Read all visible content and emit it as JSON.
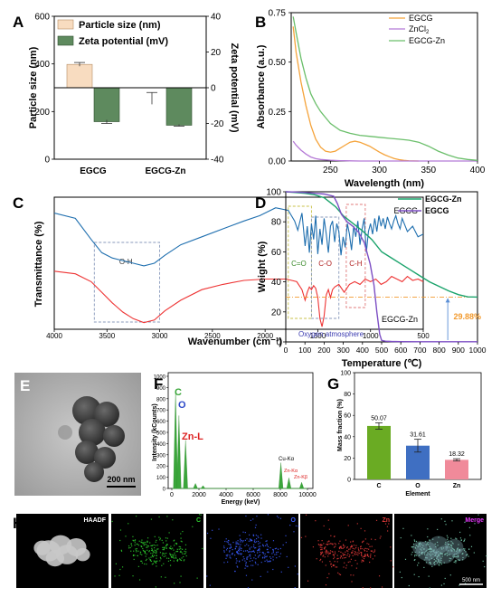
{
  "panels": {
    "a": "A",
    "b": "B",
    "c": "C",
    "d": "D",
    "e": "E",
    "f": "F",
    "g": "G",
    "h": "H"
  },
  "colors": {
    "ecg_orange": "#f5a33a",
    "zncl_purple": "#b57ad6",
    "ecgzn_green": "#6bbf6b",
    "ftir_blue": "#1f6faf",
    "ftir_red": "#ee3333",
    "tga_green": "#1aa36b",
    "tga_purple": "#7d4fc4",
    "bar_peach": "#f8dcc0",
    "bar_darkgreen": "#5e8a5e",
    "bar_c": "#6aab23",
    "bar_o": "#3f6fc2",
    "bar_zn": "#f08a9a",
    "edx_green": "#3aa63a",
    "edx_red": "#dd2222",
    "ref_orange": "#f29a2e"
  },
  "chart_data": [
    {
      "id": "A",
      "type": "bar",
      "categories": [
        "EGCG",
        "EGCG-Zn"
      ],
      "series": [
        {
          "name": "Particle size (nm)",
          "axis": "left",
          "values": [
            398,
            255
          ],
          "errors": [
            8,
            25
          ]
        },
        {
          "name": "Zeta potential (mV)",
          "axis": "right",
          "values": [
            -19,
            -21
          ],
          "errors": [
            1,
            0.5
          ]
        }
      ],
      "ylabel": "Particle size (nm)",
      "ylabel_right": "Zeta potential (mV)",
      "ylim": [
        0,
        600
      ],
      "ylim_right": [
        -40,
        40
      ],
      "yticks": [
        "0",
        "200",
        "400",
        "600"
      ],
      "yticks_right": [
        "-40",
        "-20",
        "0",
        "20",
        "40"
      ],
      "legend_position": "top-left"
    },
    {
      "id": "B",
      "type": "line",
      "xlabel": "Wavelength (nm)",
      "ylabel": "Absorbance (a.u.)",
      "xlim": [
        210,
        400
      ],
      "ylim": [
        0,
        0.75
      ],
      "xticks": [
        "250",
        "300",
        "350",
        "400"
      ],
      "yticks": [
        "0.00",
        "0.25",
        "0.50",
        "0.75"
      ],
      "legend": {
        "EGCG": "EGCG",
        "ZnCl": "ZnCl",
        "sub": "2",
        "EGCGZn": "EGCG-Zn"
      },
      "legend_position": "top-right",
      "series": [
        {
          "name": "EGCG",
          "x": [
            212,
            215,
            220,
            225,
            230,
            235,
            240,
            245,
            250,
            255,
            260,
            265,
            270,
            275,
            280,
            285,
            290,
            295,
            300,
            305,
            310,
            315,
            320,
            325,
            330,
            340
          ],
          "y": [
            0.68,
            0.55,
            0.4,
            0.28,
            0.18,
            0.11,
            0.07,
            0.05,
            0.045,
            0.05,
            0.065,
            0.08,
            0.095,
            0.1,
            0.095,
            0.085,
            0.075,
            0.06,
            0.045,
            0.032,
            0.022,
            0.013,
            0.007,
            0.003,
            0.001,
            0
          ]
        },
        {
          "name": "ZnCl2",
          "x": [
            212,
            215,
            220,
            225,
            230,
            235,
            240,
            250,
            260,
            270,
            280,
            300,
            320,
            400
          ],
          "y": [
            0.1,
            0.08,
            0.055,
            0.035,
            0.02,
            0.012,
            0.008,
            0.004,
            0.002,
            0.001,
            0,
            0,
            0,
            0
          ]
        },
        {
          "name": "EGCG-Zn",
          "x": [
            212,
            215,
            220,
            225,
            230,
            235,
            240,
            245,
            250,
            260,
            270,
            280,
            290,
            300,
            310,
            320,
            330,
            340,
            350,
            360,
            370,
            380,
            390,
            400
          ],
          "y": [
            0.73,
            0.65,
            0.52,
            0.42,
            0.34,
            0.29,
            0.25,
            0.22,
            0.19,
            0.155,
            0.14,
            0.13,
            0.125,
            0.12,
            0.115,
            0.11,
            0.105,
            0.095,
            0.075,
            0.05,
            0.03,
            0.015,
            0.008,
            0.003
          ]
        }
      ]
    },
    {
      "id": "C",
      "type": "line",
      "xlabel": "Wavenumber (cm⁻¹)",
      "ylabel": "Transmittance (%)",
      "xlim": [
        4000,
        500
      ],
      "xticks": [
        "4000",
        "3500",
        "3000",
        "2500",
        "2000",
        "1500",
        "1000",
        "500"
      ],
      "series_labels": {
        "top": "EGCG",
        "bottom": "EGCG-Zn"
      },
      "annotations": [
        "O-H",
        "C=O",
        "C-O",
        "C-H"
      ],
      "bands": [
        {
          "label": "O-H",
          "from": 3620,
          "to": 3000
        },
        {
          "label": "C=O",
          "from": 1780,
          "to": 1560
        },
        {
          "label": "C-O",
          "from": 1560,
          "to": 1300
        },
        {
          "label": "C-H",
          "from": 1230,
          "to": 1050
        }
      ],
      "series": [
        {
          "name": "EGCG",
          "x": [
            4000,
            3800,
            3650,
            3550,
            3450,
            3350,
            3250,
            3150,
            3050,
            2950,
            2800,
            2600,
            2400,
            2200,
            2050,
            1900,
            1780,
            1720,
            1690,
            1650,
            1620,
            1600,
            1580,
            1560,
            1540,
            1520,
            1500,
            1480,
            1460,
            1440,
            1420,
            1400,
            1380,
            1360,
            1340,
            1320,
            1300,
            1280,
            1260,
            1240,
            1220,
            1200,
            1180,
            1160,
            1140,
            1120,
            1100,
            1080,
            1060,
            1040,
            1020,
            1000,
            980,
            960,
            940,
            920,
            900,
            880,
            860,
            840,
            820,
            800,
            780,
            760,
            740,
            720,
            700,
            650,
            600,
            550,
            500
          ],
          "y": [
            0.88,
            0.84,
            0.68,
            0.58,
            0.54,
            0.52,
            0.5,
            0.48,
            0.5,
            0.56,
            0.64,
            0.7,
            0.76,
            0.82,
            0.86,
            0.92,
            0.9,
            0.82,
            0.75,
            0.88,
            0.63,
            0.78,
            0.58,
            0.8,
            0.68,
            0.86,
            0.57,
            0.76,
            0.64,
            0.84,
            0.72,
            0.58,
            0.78,
            0.82,
            0.66,
            0.8,
            0.74,
            0.56,
            0.7,
            0.62,
            0.8,
            0.72,
            0.6,
            0.78,
            0.7,
            0.82,
            0.64,
            0.76,
            0.84,
            0.58,
            0.74,
            0.8,
            0.72,
            0.84,
            0.74,
            0.86,
            0.78,
            0.84,
            0.76,
            0.85,
            0.8,
            0.76,
            0.82,
            0.86,
            0.8,
            0.76,
            0.84,
            0.74,
            0.78,
            0.7,
            0.72
          ]
        },
        {
          "name": "EGCG-Zn",
          "x": [
            4000,
            3800,
            3650,
            3550,
            3450,
            3350,
            3250,
            3150,
            3050,
            2950,
            2800,
            2600,
            2400,
            2200,
            2000,
            1800,
            1700,
            1650,
            1620,
            1600,
            1580,
            1560,
            1540,
            1520,
            1500,
            1480,
            1460,
            1440,
            1420,
            1400,
            1380,
            1360,
            1340,
            1300,
            1250,
            1200,
            1150,
            1100,
            1050,
            1000,
            950,
            900,
            850,
            800,
            750,
            700,
            650,
            600,
            550,
            500
          ],
          "y": [
            0.44,
            0.42,
            0.36,
            0.28,
            0.2,
            0.13,
            0.08,
            0.05,
            0.07,
            0.14,
            0.22,
            0.3,
            0.34,
            0.37,
            0.38,
            0.38,
            0.36,
            0.3,
            0.22,
            0.28,
            0.32,
            0.3,
            0.33,
            0.31,
            0.24,
            0.08,
            0.02,
            0.1,
            0.26,
            0.3,
            0.24,
            0.3,
            0.32,
            0.34,
            0.28,
            0.34,
            0.36,
            0.34,
            0.38,
            0.36,
            0.38,
            0.34,
            0.36,
            0.4,
            0.38,
            0.36,
            0.4,
            0.37,
            0.38,
            0.36
          ]
        }
      ]
    },
    {
      "id": "D",
      "type": "line",
      "xlabel": "Temperature (℃)",
      "ylabel": "Weight (%)",
      "xlim": [
        0,
        1000
      ],
      "ylim": [
        0,
        100
      ],
      "xticks": [
        "0",
        "100",
        "200",
        "300",
        "400",
        "500",
        "600",
        "700",
        "800",
        "900",
        "1000"
      ],
      "yticks": [
        "0",
        "20",
        "40",
        "60",
        "80",
        "100"
      ],
      "legend_position": "top-right",
      "reference_line": {
        "y": 29.88,
        "label": "29.88%"
      },
      "annotation": "Oxygen atmosphere",
      "series": [
        {
          "name": "EGCG-Zn",
          "x": [
            0,
            50,
            100,
            150,
            200,
            230,
            260,
            280,
            300,
            350,
            400,
            450,
            500,
            550,
            600,
            650,
            700,
            750,
            800,
            850,
            900,
            950,
            1000
          ],
          "y": [
            100,
            99.5,
            99,
            98,
            96,
            93,
            90,
            87,
            84,
            79,
            74,
            68,
            60,
            56,
            52,
            48,
            44,
            40,
            37,
            34,
            31.5,
            30,
            29.88
          ]
        },
        {
          "name": "EGCG",
          "x": [
            0,
            50,
            100,
            150,
            200,
            250,
            270,
            290,
            320,
            350,
            380,
            410,
            440,
            460,
            475,
            490,
            500,
            520,
            550,
            600,
            700,
            800,
            900,
            1000
          ],
          "y": [
            100,
            99.8,
            99.5,
            99,
            98.5,
            97,
            92,
            85,
            80,
            77,
            73,
            66,
            52,
            38,
            20,
            5,
            1,
            0.5,
            0.3,
            0.2,
            0.1,
            0.1,
            0.1,
            0.1
          ]
        }
      ]
    },
    {
      "id": "E",
      "type": "image",
      "scale_bar": "200 nm"
    },
    {
      "id": "F",
      "type": "bar",
      "xlabel": "Energy (keV)",
      "ylabel": "Intensity (kCounts)",
      "xlim": [
        0,
        10000
      ],
      "ylim": [
        0,
        1000
      ],
      "xticks": [
        "0",
        "2000",
        "4000",
        "6000",
        "8000",
        "10000"
      ],
      "yticks": [
        "0",
        "100",
        "200",
        "300",
        "400",
        "500",
        "600",
        "700",
        "800",
        "900",
        "1000"
      ],
      "labels": {
        "c": "C",
        "o": "O",
        "znl": "Zn-L",
        "cuka": "Cu-Kα",
        "znka": "Zn-Kα",
        "znkb": "Zn-Kβ"
      },
      "peaks": [
        {
          "label": "C",
          "x": 277,
          "y": 860,
          "color": "green"
        },
        {
          "label": "O",
          "x": 525,
          "y": 650,
          "color": "green"
        },
        {
          "label": "Zn-L",
          "x": 1012,
          "y": 430,
          "color": "green"
        },
        {
          "label": "",
          "x": 1740,
          "y": 45,
          "color": "green"
        },
        {
          "label": "",
          "x": 2300,
          "y": 25,
          "color": "green"
        },
        {
          "label": "Cu-Kα",
          "x": 8040,
          "y": 230,
          "color": "green"
        },
        {
          "label": "Zn-Kα",
          "x": 8630,
          "y": 95,
          "color": "green"
        },
        {
          "label": "Zn-Kβ",
          "x": 9570,
          "y": 55,
          "color": "green"
        }
      ]
    },
    {
      "id": "G",
      "type": "bar",
      "categories": [
        "C",
        "O",
        "Zn"
      ],
      "values": [
        50.07,
        31.61,
        18.32
      ],
      "errors": [
        3,
        6,
        1
      ],
      "value_labels": [
        "50.07",
        "31.61",
        "18.32"
      ],
      "xlabel": "Element",
      "ylabel": "Mass fraction (%)",
      "ylim": [
        0,
        100
      ],
      "yticks": [
        "0",
        "20",
        "40",
        "60",
        "80",
        "100"
      ]
    },
    {
      "id": "H",
      "type": "image",
      "tiles": [
        "HAADF",
        "C",
        "O",
        "Zn",
        "Merge"
      ],
      "scale_bar": "500 nm"
    }
  ]
}
